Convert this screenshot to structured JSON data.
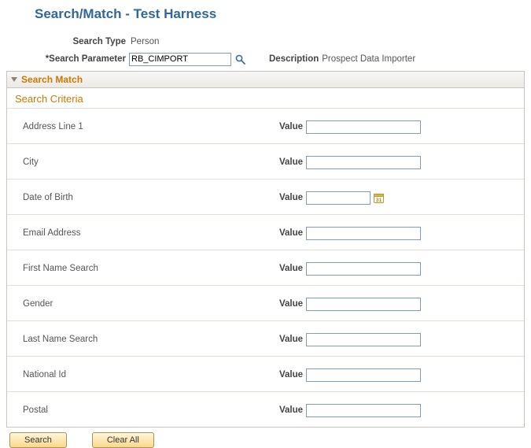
{
  "page": {
    "title": "Search/Match - Test Harness"
  },
  "header": {
    "searchTypeLabel": "Search Type",
    "searchTypeValue": "Person",
    "searchParamLabel": "*Search Parameter",
    "searchParamValue": "RB_CIMPORT",
    "searchParamInputWidth": "130px",
    "descriptionLabel": "Description",
    "descriptionValue": "Prospect Data Importer"
  },
  "section": {
    "title": "Search Match"
  },
  "criteria": {
    "title": "Search Criteria",
    "valueLabel": "Value",
    "rows": [
      {
        "label": "Address Line 1",
        "value": "",
        "inputWidth": "146px",
        "showCalendar": false
      },
      {
        "label": "City",
        "value": "",
        "inputWidth": "146px",
        "showCalendar": false
      },
      {
        "label": "Date of Birth",
        "value": "",
        "inputWidth": "82px",
        "showCalendar": true
      },
      {
        "label": "Email Address",
        "value": "",
        "inputWidth": "146px",
        "showCalendar": false
      },
      {
        "label": "First Name Search",
        "value": "",
        "inputWidth": "146px",
        "showCalendar": false
      },
      {
        "label": "Gender",
        "value": "",
        "inputWidth": "146px",
        "showCalendar": false
      },
      {
        "label": "Last Name Search",
        "value": "",
        "inputWidth": "146px",
        "showCalendar": false
      },
      {
        "label": "National Id",
        "value": "",
        "inputWidth": "146px",
        "showCalendar": false
      },
      {
        "label": "Postal",
        "value": "",
        "inputWidth": "146px",
        "showCalendar": false
      }
    ]
  },
  "buttons": {
    "search": "Search",
    "clearAll": "Clear All"
  },
  "colors": {
    "titleColor": "#336699",
    "accentOrange": "#d07800",
    "borderGray": "#c9c5bd",
    "inputBorder": "#7f9db9",
    "buttonGradStart": "#fef6db",
    "buttonGradEnd": "#fbd88a"
  }
}
